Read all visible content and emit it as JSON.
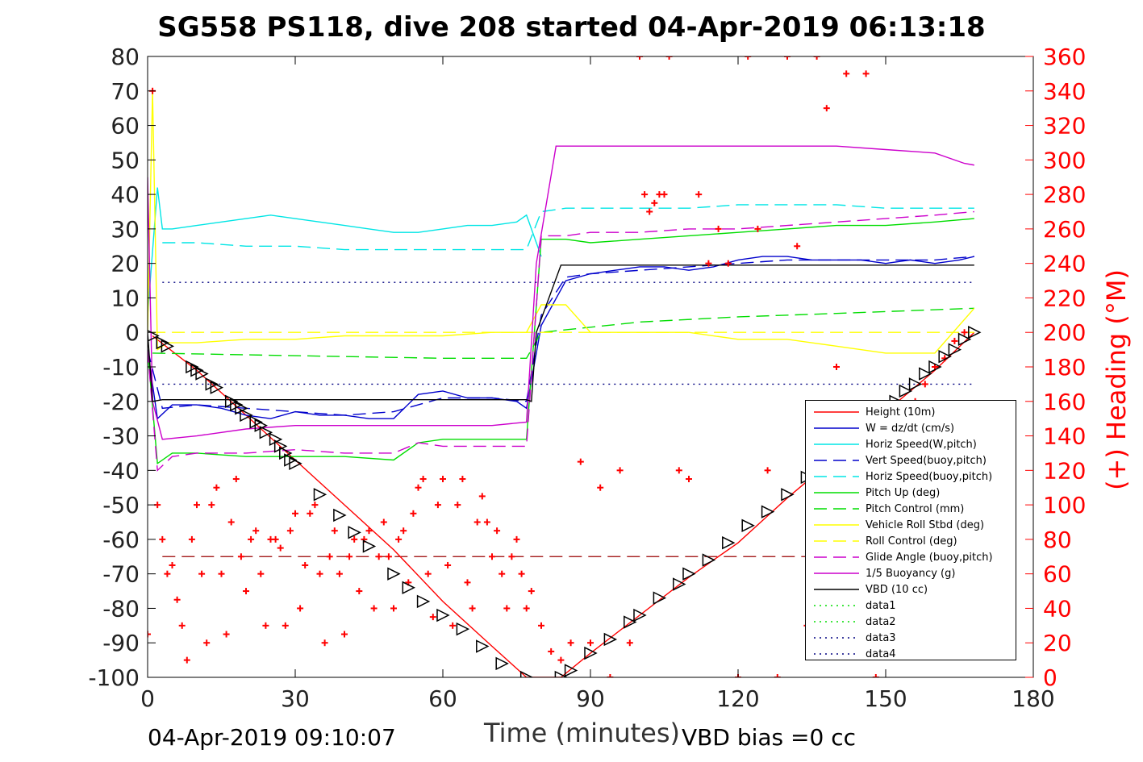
{
  "chart_data": {
    "type": "line",
    "title": "SG558 PS118, dive 208 started 04-Apr-2019 06:13:18",
    "xlabel": "Time (minutes)",
    "ylabel": "",
    "ylabel_right": "(+) Heading (°M)",
    "xlim": [
      0,
      180
    ],
    "ylim": [
      -100,
      80
    ],
    "ylim_right": [
      0,
      360
    ],
    "x_ticks": [
      0,
      30,
      60,
      90,
      120,
      150,
      180
    ],
    "y_ticks": [
      80,
      70,
      60,
      50,
      40,
      30,
      20,
      10,
      0,
      -10,
      -20,
      -30,
      -40,
      -50,
      -60,
      -70,
      -80,
      -90,
      -100
    ],
    "y_ticks_right": [
      360,
      340,
      320,
      300,
      280,
      260,
      240,
      220,
      200,
      180,
      160,
      140,
      120,
      100,
      80,
      60,
      40,
      20,
      0
    ],
    "grid": false,
    "legend_position": "bottom-right",
    "footer_left": "04-Apr-2019 09:10:07",
    "footer_right": "VBD bias =0 cc",
    "series": [
      {
        "name": "Height (10m)",
        "color": "#ff0000",
        "style": "solid",
        "x": [
          1,
          10,
          20,
          30,
          40,
          50,
          60,
          70,
          77,
          84,
          90,
          100,
          110,
          120,
          130,
          140,
          150,
          160,
          168
        ],
        "y": [
          -1,
          -11,
          -24,
          -37,
          -50,
          -63,
          -78,
          -91,
          -100,
          -100,
          -93,
          -82,
          -71,
          -61,
          -48,
          -36,
          -23,
          -11,
          0
        ]
      },
      {
        "name": "W = dz/dt (cm/s)",
        "color": "#0000cc",
        "style": "solid",
        "x": [
          0,
          2,
          5,
          10,
          15,
          20,
          25,
          30,
          35,
          40,
          45,
          50,
          55,
          60,
          65,
          70,
          75,
          77,
          80,
          85,
          90,
          95,
          100,
          105,
          110,
          115,
          120,
          125,
          130,
          135,
          140,
          145,
          150,
          155,
          160,
          165,
          168
        ],
        "y": [
          -5,
          -25,
          -21,
          -21,
          -22,
          -24,
          -25,
          -23,
          -24,
          -24,
          -25,
          -25,
          -18,
          -17,
          -19,
          -19,
          -20,
          -22,
          2,
          15,
          17,
          18,
          19,
          19,
          18,
          19,
          21,
          22,
          22,
          21,
          21,
          21,
          20,
          21,
          20,
          21,
          22
        ]
      },
      {
        "name": "Horiz Speed(W,pitch)",
        "color": "#00e5e5",
        "style": "solid",
        "x": [
          0,
          2,
          3,
          5,
          10,
          15,
          20,
          25,
          30,
          35,
          40,
          45,
          50,
          55,
          60,
          65,
          70,
          75,
          77,
          79,
          80
        ],
        "y": [
          5,
          42,
          30,
          30,
          31,
          32,
          33,
          34,
          33,
          32,
          31,
          30,
          29,
          29,
          30,
          31,
          31,
          32,
          34,
          26,
          22
        ]
      },
      {
        "name": "Vert Speed(buoy,pitch)",
        "color": "#0000cc",
        "style": "dashed",
        "x": [
          0,
          3,
          10,
          20,
          30,
          40,
          50,
          60,
          70,
          77,
          80,
          85,
          90,
          100,
          110,
          120,
          130,
          140,
          150,
          160,
          168
        ],
        "y": [
          -5,
          -22,
          -21,
          -22,
          -23,
          -24,
          -23,
          -19,
          -19,
          -20,
          5,
          16,
          17,
          18,
          19,
          20,
          21,
          21,
          21,
          21,
          22
        ]
      },
      {
        "name": "Horiz Speed(buoy,pitch)",
        "color": "#00e5e5",
        "style": "dashed",
        "x": [
          3,
          10,
          20,
          30,
          40,
          50,
          60,
          70,
          77,
          80,
          85,
          90,
          100,
          110,
          120,
          130,
          140,
          150,
          160,
          168
        ],
        "y": [
          26,
          26,
          25,
          25,
          24,
          24,
          24,
          24,
          24,
          35,
          36,
          36,
          36,
          36,
          37,
          37,
          37,
          36,
          36,
          36
        ]
      },
      {
        "name": "Pitch Up (deg)",
        "color": "#00dd00",
        "style": "solid",
        "x": [
          0,
          2,
          5,
          10,
          20,
          30,
          40,
          50,
          55,
          60,
          70,
          77,
          80,
          85,
          90,
          100,
          110,
          120,
          130,
          140,
          150,
          160,
          168
        ],
        "y": [
          -5,
          -38,
          -35,
          -35,
          -36,
          -36,
          -36,
          -37,
          -32,
          -31,
          -31,
          -31,
          27,
          27,
          26,
          27,
          28,
          29,
          30,
          31,
          31,
          32,
          33
        ]
      },
      {
        "name": "Pitch Control (mm)",
        "color": "#00dd00",
        "style": "dashed",
        "x": [
          1,
          20,
          40,
          60,
          77,
          80,
          100,
          120,
          140,
          168
        ],
        "y": [
          -6,
          -6.5,
          -7,
          -7.5,
          -7.5,
          0,
          3,
          4.5,
          5.5,
          7
        ]
      },
      {
        "name": "Vehicle Roll Stbd (deg)",
        "color": "#ffff00",
        "style": "solid",
        "x": [
          0,
          1,
          2,
          4,
          10,
          20,
          30,
          40,
          50,
          60,
          70,
          77,
          80,
          85,
          90,
          100,
          110,
          120,
          130,
          140,
          150,
          160,
          168
        ],
        "y": [
          0,
          70,
          -5,
          -3,
          -3,
          -2,
          -2,
          -1,
          -1,
          -1,
          0,
          0,
          8,
          8,
          0,
          0,
          0,
          -2,
          -2,
          -4,
          -6,
          -6,
          7
        ]
      },
      {
        "name": "Roll Control (deg)",
        "color": "#ffff00",
        "style": "dashed",
        "x": [
          1,
          168
        ],
        "y": [
          0,
          0
        ]
      },
      {
        "name": "Glide Angle (buoy,pitch)",
        "color": "#cc00cc",
        "style": "dashed",
        "x": [
          0,
          2,
          5,
          10,
          20,
          30,
          40,
          50,
          55,
          60,
          70,
          77,
          80,
          85,
          90,
          100,
          110,
          120,
          130,
          140,
          150,
          160,
          168
        ],
        "y": [
          -5,
          -40,
          -36,
          -35,
          -35,
          -34,
          -35,
          -35,
          -32,
          -33,
          -33,
          -33,
          28,
          28,
          29,
          29,
          30,
          30,
          31,
          32,
          33,
          34,
          35
        ]
      },
      {
        "name": "1/5 Buoyancy (g)",
        "color": "#cc00cc",
        "style": "solid",
        "x": [
          0,
          1,
          3,
          10,
          20,
          30,
          40,
          50,
          60,
          70,
          77,
          79,
          83,
          90,
          100,
          110,
          120,
          130,
          140,
          150,
          160,
          166,
          168
        ],
        "y": [
          45,
          -20,
          -31,
          -30,
          -28,
          -27,
          -27,
          -27,
          -27,
          -27,
          -26,
          20,
          54,
          54,
          54,
          54,
          54,
          54,
          54,
          53,
          52,
          49,
          48.5
        ]
      },
      {
        "name": "VBD (10 cc)",
        "color": "#000000",
        "style": "solid",
        "x": [
          0,
          1,
          3,
          77,
          78,
          79,
          84,
          168
        ],
        "y": [
          0,
          -20,
          -19.5,
          -19.5,
          -20,
          0,
          19.5,
          19.5
        ]
      },
      {
        "name": "data1",
        "color": "#00dd00",
        "style": "dotted",
        "x": [],
        "y": []
      },
      {
        "name": "data2",
        "color": "#00dd00",
        "style": "dotted",
        "x": [],
        "y": []
      },
      {
        "name": "data3",
        "color": "#000080",
        "style": "dotted",
        "x": [
          3,
          168
        ],
        "y": [
          14.5,
          14.5
        ]
      },
      {
        "name": "data4",
        "color": "#000080",
        "style": "dotted",
        "x": [
          3,
          168
        ],
        "y": [
          -15,
          -15
        ]
      }
    ],
    "other_lines": [
      {
        "color": "#990000",
        "style": "dashed",
        "x": [
          3,
          168
        ],
        "y": [
          -65,
          -65
        ]
      }
    ],
    "heading_series": {
      "color": "#ff0000",
      "marker": "plus",
      "axis": "right",
      "x": [
        0,
        1,
        2,
        3,
        4,
        5,
        6,
        7,
        8,
        9,
        10,
        11,
        12,
        13,
        14,
        15,
        16,
        17,
        18,
        19,
        20,
        21,
        22,
        23,
        24,
        25,
        26,
        27,
        28,
        29,
        30,
        31,
        32,
        33,
        34,
        35,
        36,
        37,
        38,
        39,
        40,
        41,
        42,
        43,
        44,
        45,
        46,
        47,
        48,
        49,
        50,
        51,
        52,
        53,
        54,
        55,
        56,
        57,
        58,
        59,
        60,
        61,
        62,
        63,
        64,
        65,
        66,
        67,
        68,
        69,
        70,
        71,
        72,
        73,
        74,
        75,
        76,
        77,
        78,
        80,
        82,
        84,
        86,
        88,
        90,
        92,
        94,
        96,
        98,
        100,
        101,
        102,
        103,
        104,
        105,
        106,
        108,
        110,
        112,
        114,
        116,
        118,
        120,
        122,
        124,
        126,
        128,
        130,
        132,
        134,
        136,
        138,
        140,
        142,
        144,
        146,
        148,
        150,
        152,
        154,
        156,
        158,
        160,
        162,
        164,
        166
      ],
      "y": [
        25,
        340,
        100,
        80,
        60,
        65,
        45,
        30,
        10,
        80,
        100,
        60,
        20,
        100,
        110,
        60,
        25,
        90,
        115,
        70,
        50,
        80,
        85,
        60,
        30,
        80,
        80,
        75,
        30,
        85,
        95,
        40,
        65,
        95,
        100,
        60,
        20,
        70,
        85,
        60,
        25,
        70,
        80,
        50,
        80,
        85,
        40,
        70,
        90,
        70,
        40,
        80,
        85,
        55,
        95,
        110,
        115,
        60,
        35,
        100,
        115,
        65,
        30,
        100,
        115,
        55,
        40,
        90,
        105,
        90,
        70,
        85,
        60,
        40,
        70,
        80,
        60,
        40,
        50,
        30,
        15,
        10,
        20,
        125,
        20,
        110,
        0,
        120,
        20,
        360,
        280,
        270,
        275,
        280,
        280,
        360,
        120,
        115,
        280,
        240,
        260,
        240,
        0,
        360,
        260,
        120,
        0,
        360,
        250,
        30,
        360,
        330,
        180,
        350,
        40,
        350,
        0,
        40,
        150,
        155,
        160,
        170,
        180,
        185,
        195,
        200
      ]
    },
    "marker_series": {
      "name": "",
      "color": "#000000",
      "marker": "triangles",
      "x": [
        1,
        3,
        4,
        9,
        10,
        11,
        13,
        14,
        17,
        18,
        19,
        20,
        22,
        23,
        24,
        26,
        27,
        28,
        29,
        30,
        35,
        39,
        42,
        45,
        50,
        53,
        56,
        60,
        64,
        68,
        72,
        77,
        84,
        86,
        90,
        94,
        98,
        100,
        104,
        108,
        110,
        114,
        118,
        122,
        126,
        130,
        134,
        138,
        142,
        146,
        150,
        152,
        154,
        156,
        158,
        160,
        162,
        164,
        166,
        168
      ],
      "y": [
        -1,
        -3,
        -4,
        -10,
        -11,
        -12,
        -15,
        -16,
        -20,
        -21,
        -22,
        -24,
        -26,
        -27,
        -29,
        -31,
        -33,
        -35,
        -37,
        -38,
        -47,
        -53,
        -58,
        -62,
        -70,
        -74,
        -78,
        -82,
        -86,
        -91,
        -96,
        -100,
        -100,
        -98,
        -93,
        -89,
        -84,
        -82,
        -77,
        -73,
        -70,
        -66,
        -61,
        -56,
        -52,
        -47,
        -42,
        -37,
        -32,
        -27,
        -22,
        -20,
        -17,
        -15,
        -12,
        -10,
        -7,
        -5,
        -2,
        0
      ]
    }
  }
}
